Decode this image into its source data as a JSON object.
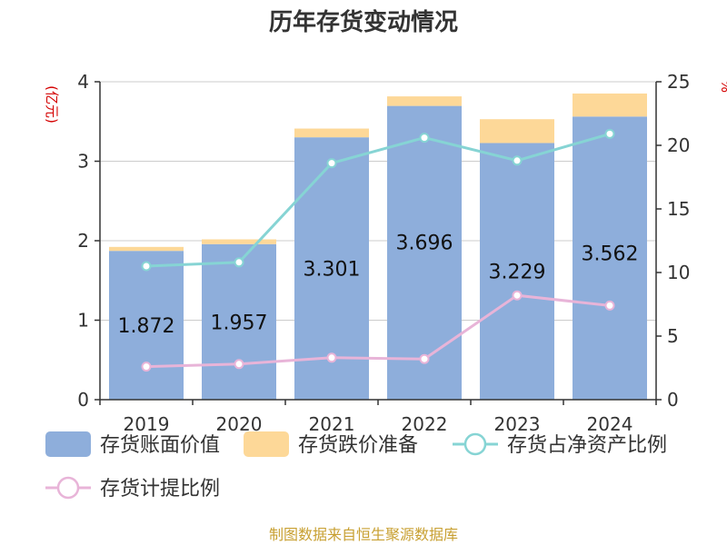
{
  "chart_data": {
    "type": "bar",
    "title": "历年存货变动情况",
    "categories": [
      "2019",
      "2020",
      "2021",
      "2022",
      "2023",
      "2024"
    ],
    "y_left_unit": "(亿元)",
    "y_left_lim": [
      0,
      4
    ],
    "y_left_ticks": [
      "0",
      "1",
      "2",
      "3",
      "4"
    ],
    "y_right_unit": "%",
    "y_right_lim": [
      0,
      25
    ],
    "y_right_ticks": [
      "0",
      "5",
      "10",
      "15",
      "20",
      "25"
    ],
    "stacked": true,
    "grid": true,
    "legend_position": "bottom",
    "series": [
      {
        "name": "存货账面价值",
        "type": "bar",
        "axis": "left",
        "color": "#8eaedb",
        "values": [
          1.872,
          1.957,
          3.301,
          3.696,
          3.229,
          3.562
        ],
        "labels": [
          "1.872",
          "1.957",
          "3.301",
          "3.696",
          "3.229",
          "3.562"
        ]
      },
      {
        "name": "存货跌价准备",
        "type": "bar",
        "axis": "left",
        "color": "#fdd898",
        "values": [
          0.05,
          0.06,
          0.11,
          0.12,
          0.3,
          0.29
        ]
      },
      {
        "name": "存货占净资产比例",
        "type": "line",
        "axis": "right",
        "color": "#86d4d4",
        "values": [
          10.5,
          10.8,
          18.6,
          20.6,
          18.8,
          20.9
        ]
      },
      {
        "name": "存货计提比例",
        "type": "line",
        "axis": "right",
        "color": "#e8b4d8",
        "values": [
          2.6,
          2.8,
          3.3,
          3.2,
          8.2,
          7.4
        ]
      }
    ],
    "source": "制图数据来自恒生聚源数据库"
  }
}
